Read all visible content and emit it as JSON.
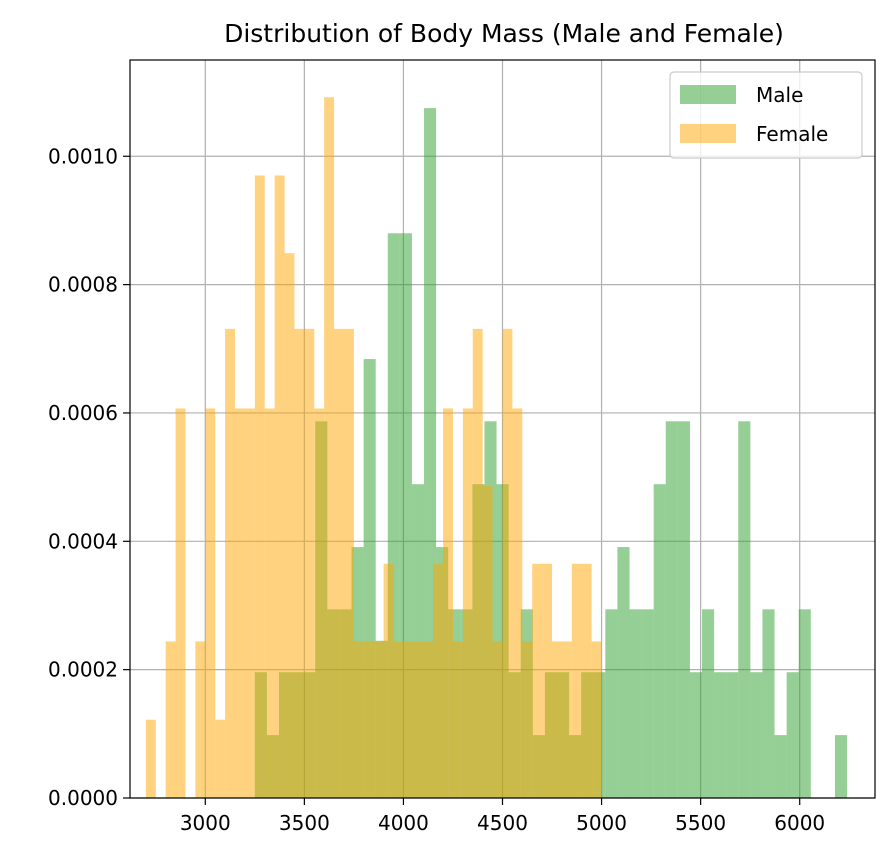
{
  "chart_data": {
    "type": "bar",
    "title": "Distribution of Body Mass (Male and Female)",
    "xlabel": "",
    "ylabel": "",
    "xlim": [
      2620,
      6380
    ],
    "ylim": [
      0,
      0.00115
    ],
    "grid": true,
    "legend_position": "top-right",
    "x_ticks": [
      3000,
      3500,
      4000,
      4500,
      5000,
      5500,
      6000
    ],
    "x_tick_labels": [
      "3000",
      "3500",
      "4000",
      "4500",
      "5000",
      "5500",
      "6000"
    ],
    "y_ticks": [
      0,
      0.0002,
      0.0004,
      0.0006,
      0.0008,
      0.001
    ],
    "y_tick_labels": [
      "0.0000",
      "0.0002",
      "0.0004",
      "0.0006",
      "0.0008",
      "0.0010"
    ],
    "series": [
      {
        "name": "Male",
        "color": "#2ca02c",
        "opacity": 0.5,
        "bin_start": 3250,
        "bin_width": 61,
        "values": [
          0.000196,
          9.8e-05,
          0.000196,
          0.000196,
          0.000196,
          0.000587,
          0.000294,
          0.000294,
          0.000391,
          0.000684,
          0.000245,
          0.00088,
          0.00088,
          0.000489,
          0.001075,
          0.000391,
          0.000294,
          0.000294,
          0.000489,
          0.000587,
          0.000489,
          0.000196,
          0.000294,
          9.8e-05,
          0.000196,
          0.000196,
          9.8e-05,
          0.000196,
          0.000196,
          0.000294,
          0.000391,
          0.000294,
          0.000294,
          0.000489,
          0.000587,
          0.000587,
          0.000196,
          0.000294,
          0.000196,
          0.000196,
          0.000587,
          0.000196,
          0.000294,
          9.8e-05,
          0.000196,
          0.000294,
          0.0,
          0.0,
          9.8e-05
        ]
      },
      {
        "name": "Female",
        "color": "#ffa500",
        "opacity": 0.5,
        "bin_start": 2700,
        "bin_width": 50,
        "values": [
          0.000122,
          0.0,
          0.000244,
          0.000607,
          0.0,
          0.000244,
          0.000607,
          0.000122,
          0.000731,
          0.000607,
          0.000607,
          0.00097,
          0.000607,
          0.00097,
          0.000849,
          0.000731,
          0.000731,
          0.000607,
          0.001092,
          0.000731,
          0.000731,
          0.000244,
          0.000244,
          0.000244,
          0.000365,
          0.000244,
          0.000244,
          0.000244,
          0.000244,
          0.000365,
          0.000607,
          0.000244,
          0.000607,
          0.000731,
          0.000486,
          0.000244,
          0.000731,
          0.000607,
          0.000244,
          0.000365,
          0.000365,
          0.000244,
          0.000244,
          0.000365,
          0.000365,
          0.000244
        ]
      }
    ]
  }
}
